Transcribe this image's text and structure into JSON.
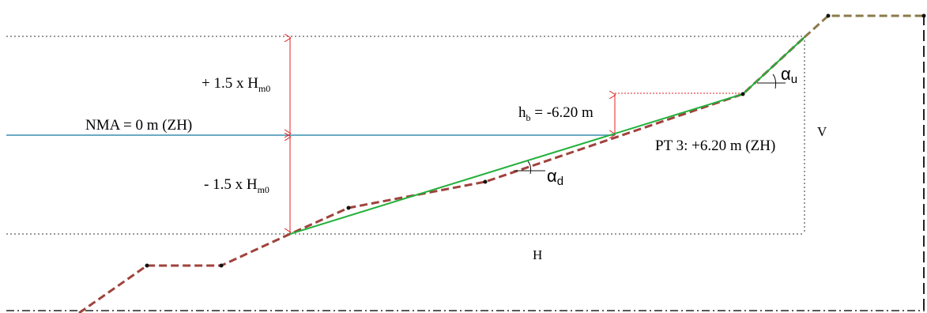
{
  "labels": {
    "upper_range": "+ 1.5 x H",
    "upper_range_sub": "m0",
    "lower_range": "- 1.5 x H",
    "lower_range_sub": "m0",
    "water_level": "NMA = 0 m (ZH)",
    "hb_main": "h",
    "hb_sub": "b",
    "hb_value": " = -6.20 m",
    "point": "PT 3: +6.20 m (ZH)",
    "vertical": "V",
    "horizontal": "H",
    "alpha": "α",
    "alpha_u_sub": "u",
    "alpha_d_sub": "d"
  },
  "colors": {
    "water": "#3a8fb0",
    "profile": "#a0423c",
    "profile_upper": "#8c7a4a",
    "slope_fit": "#22b03a",
    "arrow": "#e02020",
    "dotted": "#333333"
  }
}
